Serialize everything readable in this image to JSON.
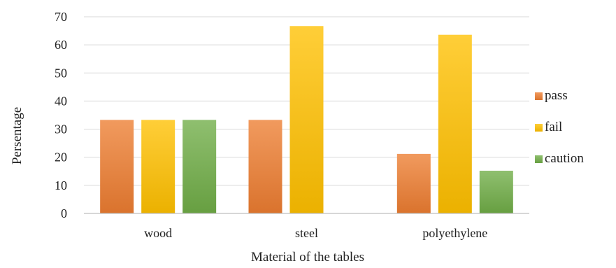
{
  "chart_data": {
    "type": "bar",
    "title": "",
    "xlabel": "Material of the tables",
    "ylabel": "Persentage",
    "categories": [
      "wood",
      "steel",
      "polyethylene"
    ],
    "ylim": [
      0,
      70
    ],
    "yticks": [
      0,
      10,
      20,
      30,
      40,
      50,
      60,
      70
    ],
    "grid": true,
    "legend_position": "right",
    "series": [
      {
        "name": "pass",
        "color": "#ed7d31",
        "values": [
          33.3,
          33.3,
          21.2
        ]
      },
      {
        "name": "fail",
        "color": "#ffc000",
        "values": [
          33.3,
          66.7,
          63.6
        ]
      },
      {
        "name": "caution",
        "color": "#70ad47",
        "values": [
          33.3,
          0,
          15.2
        ]
      }
    ]
  }
}
